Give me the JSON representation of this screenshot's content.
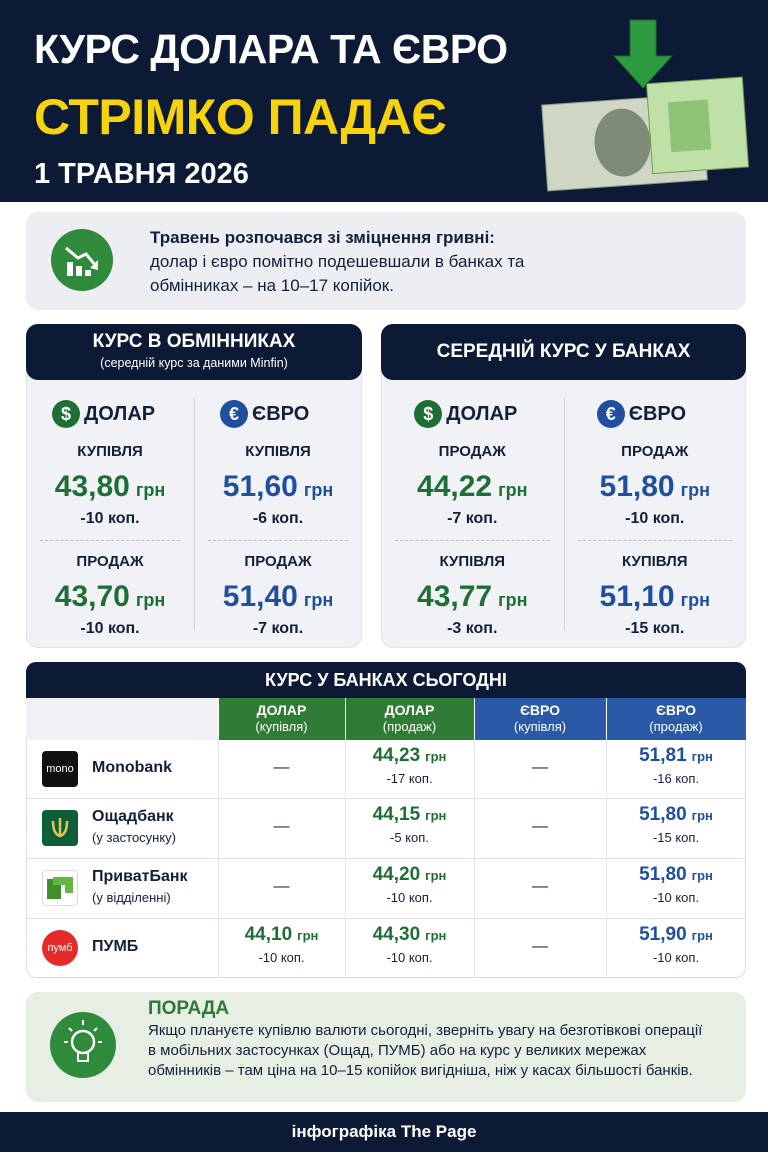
{
  "header": {
    "title_line1": "КУРС ДОЛАРА ТА ЄВРО",
    "title_line2": "СТРІМКО ПАДАЄ",
    "date": "1 ТРАВНЯ 2026"
  },
  "intro": {
    "lead": "Травень розпочався зі зміцнення гривні:",
    "text": "долар і євро помітно подешевшали в банках та обмінниках – на 10–17 копійок."
  },
  "unit": "грн",
  "panels": [
    {
      "title": "КУРС В ОБМІННИКАХ",
      "subtitle": "(середній курс за даними Minfin)",
      "columns": [
        {
          "symbol": "$",
          "currency": "ДОЛАР",
          "rows": [
            {
              "label": "КУПІВЛЯ",
              "rate": "43,80",
              "change": "-10 коп."
            },
            {
              "label": "ПРОДАЖ",
              "rate": "43,70",
              "change": "-10 коп."
            }
          ]
        },
        {
          "symbol": "€",
          "currency": "ЄВРО",
          "rows": [
            {
              "label": "КУПІВЛЯ",
              "rate": "51,60",
              "change": "-6 коп."
            },
            {
              "label": "ПРОДАЖ",
              "rate": "51,40",
              "change": "-7 коп."
            }
          ]
        }
      ]
    },
    {
      "title": "СЕРЕДНІЙ КУРС У БАНКАХ",
      "columns": [
        {
          "symbol": "$",
          "currency": "ДОЛАР",
          "rows": [
            {
              "label": "ПРОДАЖ",
              "rate": "44,22",
              "change": "-7 коп."
            },
            {
              "label": "КУПІВЛЯ",
              "rate": "43,77",
              "change": "-3 коп."
            }
          ]
        },
        {
          "symbol": "€",
          "currency": "ЄВРО",
          "rows": [
            {
              "label": "ПРОДАЖ",
              "rate": "51,80",
              "change": "-10 коп."
            },
            {
              "label": "КУПІВЛЯ",
              "rate": "51,10",
              "change": "-15 коп."
            }
          ]
        }
      ]
    }
  ],
  "table": {
    "title": "КУРС У БАНКАХ СЬОГОДНІ",
    "columns": [
      {
        "name": "ДОЛАР",
        "sub": "(купівля)"
      },
      {
        "name": "ДОЛАР",
        "sub": "(продаж)"
      },
      {
        "name": "ЄВРО",
        "sub": "(купівля)"
      },
      {
        "name": "ЄВРО",
        "sub": "(продаж)"
      }
    ],
    "rows": [
      {
        "logo": "mono",
        "name": "Monobank",
        "cells": [
          "—",
          {
            "rate": "44,23",
            "change": "-17 коп."
          },
          "—",
          {
            "rate": "51,81",
            "change": "-16 коп."
          }
        ]
      },
      {
        "name": "Ощадбанк",
        "note": "(у застосунку)",
        "cells": [
          "—",
          {
            "rate": "44,15",
            "change": "-5 коп."
          },
          "—",
          {
            "rate": "51,80",
            "change": "-15 коп."
          }
        ]
      },
      {
        "name": "ПриватБанк",
        "note": "(у відділенні)",
        "cells": [
          "—",
          {
            "rate": "44,20",
            "change": "-10 коп."
          },
          "—",
          {
            "rate": "51,80",
            "change": "-10 коп."
          }
        ]
      },
      {
        "logo": "пумб",
        "name": "ПУМБ",
        "cells": [
          {
            "rate": "44,10",
            "change": "-10 коп."
          },
          {
            "rate": "44,30",
            "change": "-10 коп."
          },
          "—",
          {
            "rate": "51,90",
            "change": "-10 коп."
          }
        ]
      }
    ]
  },
  "tip": {
    "title": "ПОРАДА",
    "text": "Якщо плануєте купівлю валюти сьогодні, зверніть увагу на безготівкові операції в мобільних застосунках (Ощад, ПУМБ) або на курс у великих мережах обмінників – там ціна на 10–15 копійок вигідніша, ніж у касах більшості банків."
  },
  "footer": {
    "text": "інфографіка The Page"
  }
}
